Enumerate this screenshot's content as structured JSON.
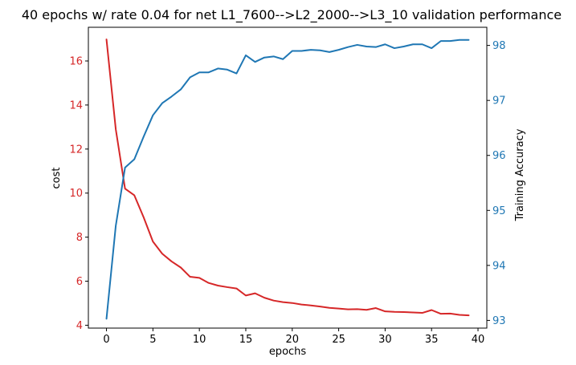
{
  "chart_data": {
    "type": "line",
    "title": "40 epochs w/ rate 0.04 for net L1_7600-->L2_2000-->L3_10 validation performance",
    "xlabel": "epochs",
    "ylabel_left": "cost",
    "ylabel_right": "Training Accuracy",
    "xlim": [
      -1.95,
      40.95
    ],
    "ylim_left": [
      3.87,
      17.53
    ],
    "ylim_right": [
      92.86,
      98.33
    ],
    "x_ticks": [
      0,
      5,
      10,
      15,
      20,
      25,
      30,
      35,
      40
    ],
    "y_ticks_left": [
      4,
      6,
      8,
      10,
      12,
      14,
      16
    ],
    "y_ticks_right": [
      93,
      94,
      95,
      96,
      97,
      98
    ],
    "grid": false,
    "x": [
      0,
      1,
      2,
      3,
      4,
      5,
      6,
      7,
      8,
      9,
      10,
      11,
      12,
      13,
      14,
      15,
      16,
      17,
      18,
      19,
      20,
      21,
      22,
      23,
      24,
      25,
      26,
      27,
      28,
      29,
      30,
      31,
      32,
      33,
      34,
      35,
      36,
      37,
      38,
      39
    ],
    "series": [
      {
        "axis": "left",
        "color": "#d62728",
        "values": [
          16.98,
          12.9,
          10.2,
          9.9,
          8.9,
          7.8,
          7.25,
          6.9,
          6.62,
          6.2,
          6.15,
          5.92,
          5.8,
          5.73,
          5.67,
          5.35,
          5.45,
          5.25,
          5.12,
          5.05,
          5.01,
          4.94,
          4.9,
          4.85,
          4.79,
          4.76,
          4.72,
          4.73,
          4.7,
          4.78,
          4.63,
          4.61,
          4.6,
          4.58,
          4.56,
          4.69,
          4.52,
          4.53,
          4.47,
          4.45
        ]
      },
      {
        "axis": "right",
        "color": "#1f77b4",
        "values": [
          93.03,
          94.72,
          95.78,
          95.93,
          96.34,
          96.73,
          96.95,
          97.07,
          97.2,
          97.42,
          97.51,
          97.51,
          97.58,
          97.56,
          97.49,
          97.82,
          97.7,
          97.78,
          97.8,
          97.75,
          97.9,
          97.9,
          97.92,
          97.91,
          97.88,
          97.92,
          97.97,
          98.01,
          97.98,
          97.97,
          98.02,
          97.95,
          97.98,
          98.02,
          98.02,
          97.95,
          98.08,
          98.08,
          98.1,
          98.1
        ]
      }
    ]
  }
}
